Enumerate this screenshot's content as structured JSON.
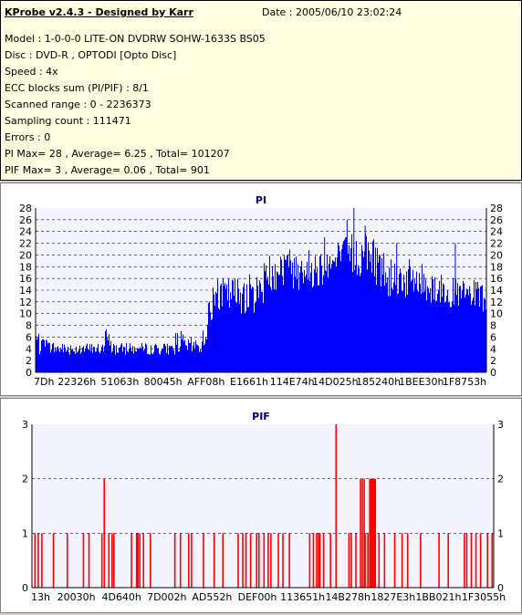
{
  "header": {
    "title": "KProbe v2.4.3 - Designed by Karr",
    "date": "Date : 2005/06/10 23:02:24",
    "lines": [
      "Model : 1-0-0-0 LITE-ON DVDRW SOHW-1633S BS05",
      "Disc : DVD-R , OPTODI [Opto Disc]",
      "Speed : 4x",
      "ECC blocks sum (PI/PIF) : 8/1",
      "Scanned range : 0 - 2236373",
      "Sampling count : 111471",
      "Errors : 0",
      "PI Max= 28 , Average= 6.25 , Total= 101207",
      "PIF Max= 3 , Average= 0.06 , Total= 901"
    ]
  },
  "chart_data": [
    {
      "type": "bar",
      "title": "PI",
      "ylim": [
        0,
        28
      ],
      "yticks": [
        0,
        2,
        4,
        6,
        8,
        10,
        12,
        14,
        16,
        18,
        20,
        22,
        24,
        26,
        28
      ],
      "xticks": [
        "7Dh",
        "22326h",
        "51063h",
        "80045h",
        "AFF08h",
        "E1661h",
        "114E74h",
        "14D025h",
        "185240h",
        "1BEE30h",
        "1F8753h"
      ],
      "grid": true,
      "color": "#0000ff",
      "envelope": [
        [
          0,
          9,
          2
        ],
        [
          0.01,
          6,
          3
        ],
        [
          0.05,
          5,
          3
        ],
        [
          0.15,
          5,
          3
        ],
        [
          0.155,
          8,
          3
        ],
        [
          0.17,
          5,
          3
        ],
        [
          0.3,
          5,
          3
        ],
        [
          0.315,
          8,
          3
        ],
        [
          0.33,
          6,
          3
        ],
        [
          0.365,
          6,
          3
        ],
        [
          0.375,
          9,
          4
        ],
        [
          0.385,
          13,
          7
        ],
        [
          0.395,
          16,
          10
        ],
        [
          0.49,
          17,
          10
        ],
        [
          0.5,
          18,
          11
        ],
        [
          0.515,
          20,
          13
        ],
        [
          0.53,
          22,
          14
        ],
        [
          0.6,
          21,
          14
        ],
        [
          0.66,
          22,
          15
        ],
        [
          0.7,
          24,
          16
        ],
        [
          0.75,
          24,
          15
        ],
        [
          0.78,
          20,
          13
        ],
        [
          0.85,
          19,
          12
        ],
        [
          0.92,
          16,
          11
        ],
        [
          0.96,
          16,
          10
        ],
        [
          1.0,
          15,
          10
        ]
      ],
      "peak_marks": [
        [
          0.705,
          28
        ],
        [
          0.69,
          26
        ],
        [
          0.73,
          25
        ],
        [
          0.8,
          22
        ],
        [
          0.93,
          22
        ],
        [
          0.64,
          23
        ]
      ]
    },
    {
      "type": "bar",
      "title": "PIF",
      "ylim": [
        0,
        3
      ],
      "yticks": [
        0,
        1,
        2,
        3
      ],
      "xticks": [
        "13h",
        "20030h",
        "4D640h",
        "7D002h",
        "AD552h",
        "DEF00h",
        "113651h",
        "14B278h",
        "1827E3h",
        "1BB021h",
        "1F3055h"
      ],
      "grid": true,
      "color": "#ff0000",
      "spikes": [
        [
          0.005,
          1
        ],
        [
          0.012,
          1
        ],
        [
          0.02,
          1
        ],
        [
          0.045,
          1
        ],
        [
          0.075,
          1
        ],
        [
          0.11,
          1
        ],
        [
          0.122,
          1
        ],
        [
          0.15,
          1
        ],
        [
          0.155,
          2
        ],
        [
          0.165,
          1
        ],
        [
          0.172,
          1
        ],
        [
          0.176,
          1
        ],
        [
          0.214,
          1
        ],
        [
          0.225,
          1
        ],
        [
          0.228,
          1
        ],
        [
          0.232,
          1
        ],
        [
          0.24,
          1
        ],
        [
          0.255,
          1
        ],
        [
          0.308,
          1
        ],
        [
          0.32,
          1
        ],
        [
          0.338,
          1
        ],
        [
          0.344,
          1
        ],
        [
          0.37,
          1
        ],
        [
          0.393,
          1
        ],
        [
          0.412,
          1
        ],
        [
          0.445,
          1
        ],
        [
          0.455,
          1
        ],
        [
          0.462,
          1
        ],
        [
          0.472,
          1
        ],
        [
          0.485,
          1
        ],
        [
          0.49,
          1
        ],
        [
          0.501,
          1
        ],
        [
          0.51,
          1
        ],
        [
          0.516,
          1
        ],
        [
          0.532,
          1
        ],
        [
          0.542,
          1
        ],
        [
          0.556,
          1
        ],
        [
          0.6,
          1
        ],
        [
          0.608,
          1
        ],
        [
          0.615,
          1
        ],
        [
          0.619,
          1
        ],
        [
          0.622,
          1
        ],
        [
          0.63,
          1
        ],
        [
          0.645,
          1
        ],
        [
          0.657,
          3
        ],
        [
          0.685,
          1
        ],
        [
          0.69,
          1
        ],
        [
          0.7,
          1
        ],
        [
          0.71,
          2
        ],
        [
          0.714,
          2
        ],
        [
          0.718,
          2
        ],
        [
          0.72,
          1
        ],
        [
          0.726,
          1
        ],
        [
          0.73,
          2
        ],
        [
          0.733,
          2
        ],
        [
          0.736,
          2
        ],
        [
          0.739,
          2
        ],
        [
          0.742,
          2
        ],
        [
          0.75,
          1
        ],
        [
          0.762,
          1
        ],
        [
          0.784,
          1
        ],
        [
          0.8,
          1
        ],
        [
          0.812,
          1
        ],
        [
          0.84,
          1
        ],
        [
          0.88,
          1
        ],
        [
          0.9,
          1
        ],
        [
          0.935,
          1
        ],
        [
          0.94,
          1
        ],
        [
          0.95,
          1
        ],
        [
          0.96,
          1
        ],
        [
          0.97,
          1
        ],
        [
          0.985,
          1
        ],
        [
          0.995,
          1
        ]
      ]
    }
  ]
}
